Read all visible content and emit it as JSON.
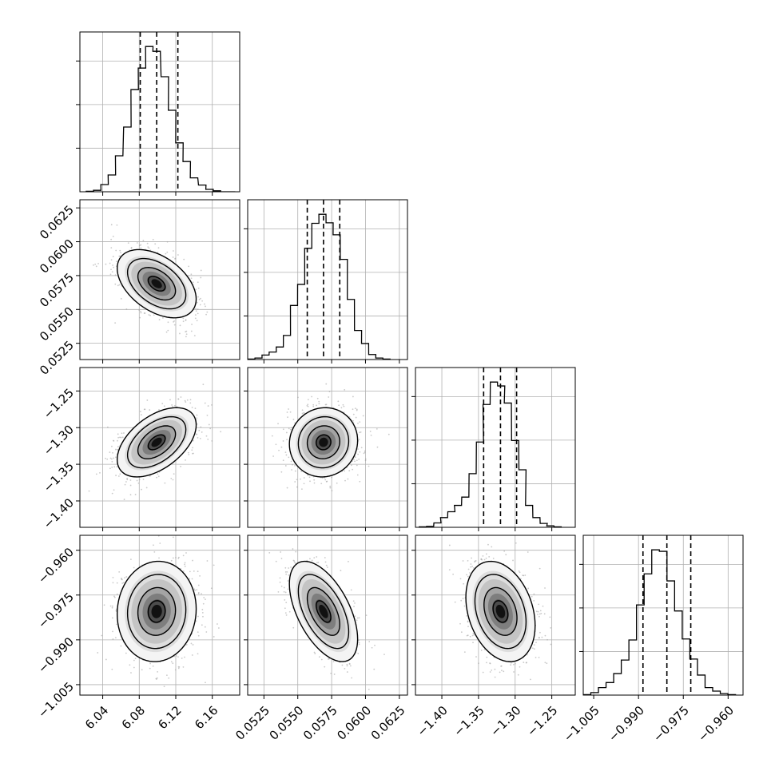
{
  "chart_data": {
    "type": "corner",
    "parameters": [
      {
        "lim": [
          6.015,
          6.19
        ],
        "ticks": [
          6.04,
          6.08,
          6.12,
          6.16
        ],
        "tick_labels": [
          "6.04",
          "6.08",
          "6.12",
          "6.16"
        ],
        "quantiles": [
          6.0811,
          6.0991,
          6.1223
        ]
      },
      {
        "lim": [
          0.0513,
          0.0631
        ],
        "ticks": [
          0.0525,
          0.055,
          0.0575,
          0.06,
          0.0625
        ],
        "tick_labels": [
          "0.0525",
          "0.0550",
          "0.0575",
          "0.0600",
          "0.0625"
        ],
        "quantiles": [
          0.0557,
          0.0569,
          0.0581
        ]
      },
      {
        "lim": [
          -1.436,
          -1.218
        ],
        "ticks": [
          -1.4,
          -1.35,
          -1.3,
          -1.25
        ],
        "tick_labels": [
          "−1.40",
          "−1.35",
          "−1.30",
          "−1.25"
        ],
        "quantiles": [
          -1.343,
          -1.32,
          -1.298
        ]
      },
      {
        "lim": [
          -1.0085,
          -0.955
        ],
        "ticks": [
          -1.005,
          -0.99,
          -0.975,
          -0.96
        ],
        "tick_labels": [
          "−1.005",
          "−0.990",
          "−0.975",
          "−0.960"
        ],
        "quantiles": [
          -0.9885,
          -0.9805,
          -0.9725
        ]
      }
    ],
    "histograms": [
      {
        "param": 0,
        "bin_width": 0.0082,
        "bin_centers": [
          6.026,
          6.034,
          6.042,
          6.05,
          6.058,
          6.067,
          6.075,
          6.083,
          6.091,
          6.099,
          6.108,
          6.116,
          6.124,
          6.132,
          6.14,
          6.149,
          6.157,
          6.165,
          6.173,
          6.181
        ],
        "counts": [
          1,
          3,
          15,
          35,
          75,
          135,
          213,
          258,
          303,
          293,
          240,
          170,
          102,
          63,
          29,
          14,
          5,
          2,
          0,
          0
        ]
      },
      {
        "param": 1,
        "bin_width": 0.000525,
        "bin_centers": [
          0.05157,
          0.0521,
          0.05262,
          0.05315,
          0.05367,
          0.0542,
          0.05472,
          0.05525,
          0.05577,
          0.0563,
          0.05682,
          0.05735,
          0.05787,
          0.0584,
          0.05892,
          0.05945,
          0.05997,
          0.0605,
          0.06102,
          0.06155
        ],
        "counts": [
          1,
          3,
          9,
          15,
          25,
          48,
          108,
          150,
          222,
          272,
          290,
          273,
          249,
          200,
          120,
          58,
          32,
          10,
          3,
          1
        ]
      },
      {
        "param": 2,
        "bin_width": 0.0097,
        "bin_centers": [
          -1.426,
          -1.416,
          -1.406,
          -1.397,
          -1.387,
          -1.378,
          -1.368,
          -1.358,
          -1.348,
          -1.339,
          -1.329,
          -1.319,
          -1.31,
          -1.3,
          -1.29,
          -1.281,
          -1.271,
          -1.261,
          -1.252,
          -1.242
        ],
        "counts": [
          1,
          2,
          9,
          20,
          32,
          45,
          62,
          110,
          175,
          252,
          298,
          290,
          255,
          178,
          118,
          45,
          20,
          8,
          3,
          1
        ]
      },
      {
        "param": 3,
        "bin_width": 0.00255,
        "bin_centers": [
          -1.00724,
          -1.00469,
          -1.00214,
          -0.99959,
          -0.99704,
          -0.99449,
          -0.99194,
          -0.98939,
          -0.98684,
          -0.98429,
          -0.98174,
          -0.97919,
          -0.97664,
          -0.97409,
          -0.97154,
          -0.96899,
          -0.96644,
          -0.96389,
          -0.96134,
          -0.95879
        ],
        "counts": [
          1,
          5,
          15,
          25,
          43,
          70,
          110,
          180,
          242,
          290,
          287,
          228,
          168,
          112,
          72,
          40,
          15,
          8,
          3,
          1
        ]
      }
    ],
    "pairs": [
      {
        "x": 0,
        "y": 1,
        "rho": -0.45
      },
      {
        "x": 0,
        "y": 2,
        "rho": 0.5
      },
      {
        "x": 1,
        "y": 2,
        "rho": 0.05
      },
      {
        "x": 0,
        "y": 3,
        "rho": 0.05
      },
      {
        "x": 1,
        "y": 3,
        "rho": -0.55
      },
      {
        "x": 2,
        "y": 3,
        "rho": -0.28
      }
    ],
    "contour_levels_sigma": [
      0.5,
      1.0,
      1.5,
      2.0
    ],
    "grid": true,
    "colors": {
      "line": "#000000",
      "grid": "#b0b0b0",
      "points": "#9e9e9e",
      "density_dark": "#000000",
      "density_light": "#ffffff"
    }
  }
}
